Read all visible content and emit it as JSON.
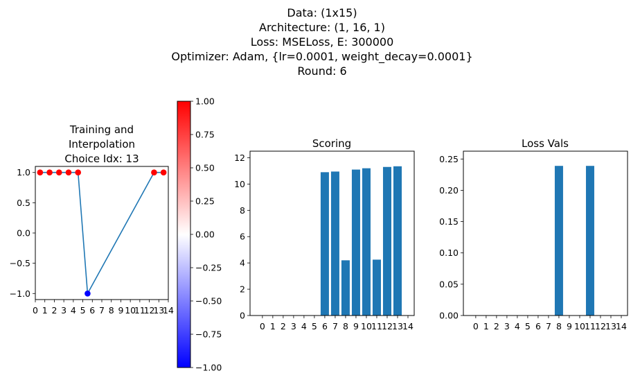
{
  "suptitle_lines": [
    "Data: (1x15)",
    "Architecture: (1, 16, 1)",
    "Loss: MSELoss, E: 300000",
    "Optimizer: Adam, {lr=0.0001, weight_decay=0.0001}",
    "Round: 6"
  ],
  "colors": {
    "bar": "#1f77b4",
    "line": "#1f77b4",
    "cmap_low": "#0000ff",
    "cmap_mid": "#ffffff",
    "cmap_high": "#ff0000"
  },
  "chart_data": [
    {
      "type": "line",
      "title": "Training and\nInterpolation\nChoice Idx: 13",
      "title_lines": [
        "Training and",
        "Interpolation",
        "Choice Idx: 13"
      ],
      "xlim": [
        0,
        14
      ],
      "ylim": [
        -1.1,
        1.1
      ],
      "x_ticks": [
        0,
        1,
        2,
        3,
        4,
        5,
        6,
        7,
        8,
        9,
        10,
        11,
        12,
        13,
        14
      ],
      "x_tick_labels": [
        "0",
        "1",
        "2",
        "3",
        "4",
        "5",
        "6",
        "7",
        "8",
        "9",
        "10",
        "11",
        "12",
        "13",
        "14"
      ],
      "y_ticks": [
        1.0,
        0.5,
        0.0,
        -0.5,
        -1.0
      ],
      "y_tick_labels": [
        "1.0",
        "0.5",
        "0.0",
        "−0.5",
        "−1.0"
      ],
      "line": {
        "x": [
          0.5,
          1.5,
          2.5,
          3.5,
          4.5,
          5.5,
          12.5,
          13.5
        ],
        "y": [
          1,
          1,
          1,
          1,
          1,
          -1,
          1,
          1
        ]
      },
      "points": [
        {
          "x": 0.5,
          "y": 1,
          "value": 1
        },
        {
          "x": 1.5,
          "y": 1,
          "value": 1
        },
        {
          "x": 2.5,
          "y": 1,
          "value": 1
        },
        {
          "x": 3.5,
          "y": 1,
          "value": 1
        },
        {
          "x": 4.5,
          "y": 1,
          "value": 1
        },
        {
          "x": 5.5,
          "y": -1,
          "value": -1
        },
        {
          "x": 12.5,
          "y": 1,
          "value": 1
        },
        {
          "x": 13.5,
          "y": 1,
          "value": 1
        }
      ]
    },
    {
      "type": "colorbar",
      "range": [
        -1.0,
        1.0
      ],
      "ticks": [
        1.0,
        0.75,
        0.5,
        0.25,
        0.0,
        -0.25,
        -0.5,
        -0.75,
        -1.0
      ],
      "tick_labels": [
        "1.00",
        "0.75",
        "0.50",
        "0.25",
        "0.00",
        "−0.25",
        "−0.50",
        "−0.75",
        "−1.00"
      ]
    },
    {
      "type": "bar",
      "title": "Scoring",
      "categories": [
        "0",
        "1",
        "2",
        "3",
        "4",
        "5",
        "6",
        "7",
        "8",
        "9",
        "10",
        "11",
        "12",
        "13",
        "14"
      ],
      "values": [
        0,
        0,
        0,
        0,
        0,
        0,
        10.9,
        10.95,
        4.2,
        11.1,
        11.2,
        4.25,
        11.3,
        11.35,
        0
      ],
      "ylim": [
        0,
        12.5
      ],
      "y_ticks": [
        0,
        2,
        4,
        6,
        8,
        10,
        12
      ],
      "y_tick_labels": [
        "0",
        "2",
        "4",
        "6",
        "8",
        "10",
        "12"
      ]
    },
    {
      "type": "bar",
      "title": "Loss Vals",
      "categories": [
        "0",
        "1",
        "2",
        "3",
        "4",
        "5",
        "6",
        "7",
        "8",
        "9",
        "10",
        "11",
        "12",
        "13",
        "14"
      ],
      "values": [
        0,
        0,
        0,
        0,
        0,
        0,
        0,
        0,
        0.239,
        0,
        0,
        0.239,
        0,
        0,
        0
      ],
      "ylim": [
        0,
        0.2625
      ],
      "y_ticks": [
        0.0,
        0.05,
        0.1,
        0.15,
        0.2,
        0.25
      ],
      "y_tick_labels": [
        "0.00",
        "0.05",
        "0.10",
        "0.15",
        "0.20",
        "0.25"
      ]
    }
  ]
}
